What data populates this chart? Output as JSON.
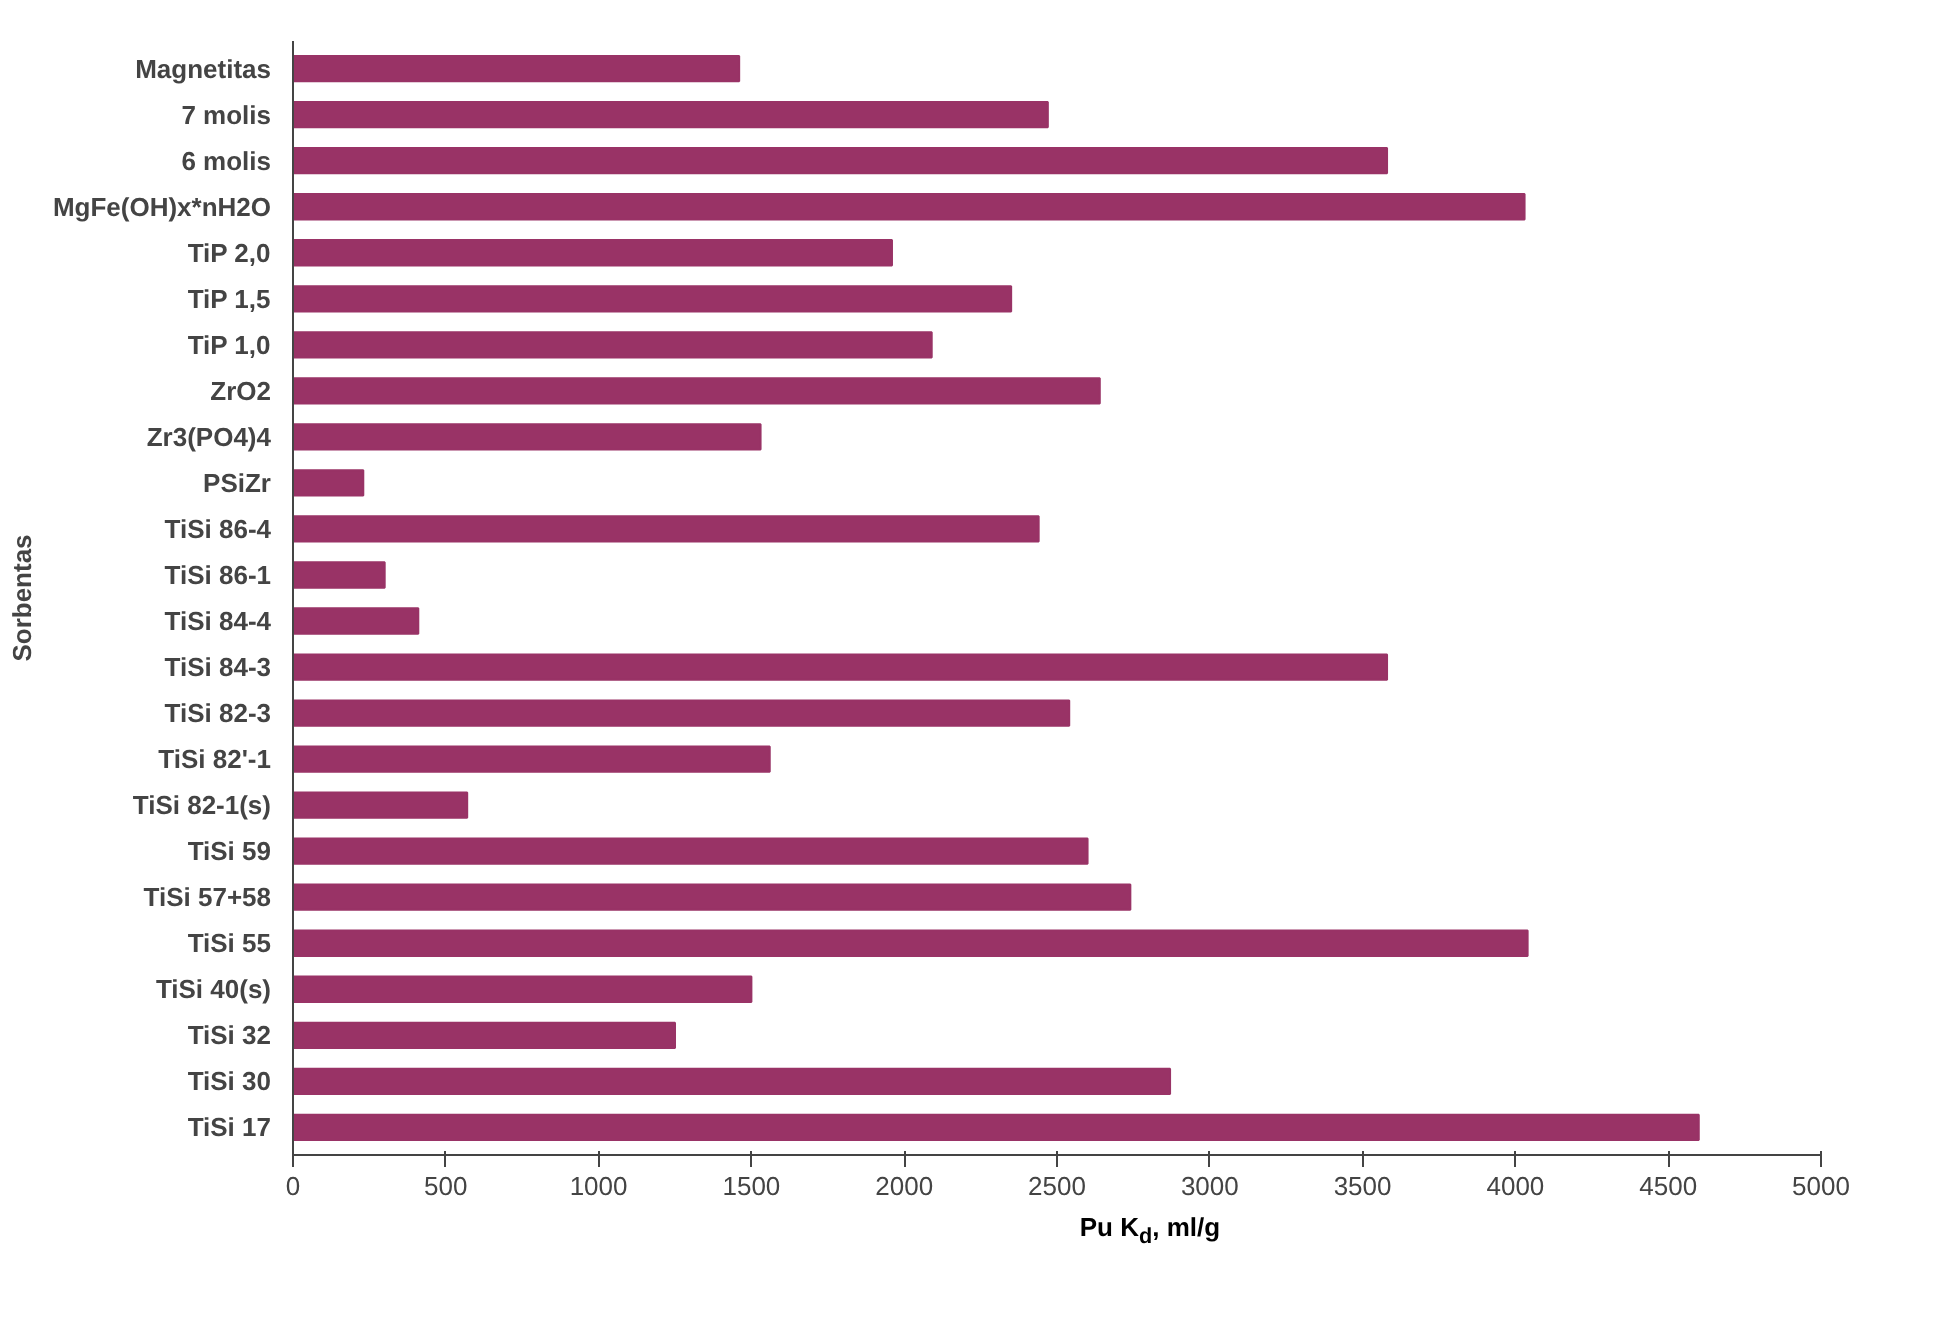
{
  "chart_data": {
    "type": "bar",
    "orientation": "horizontal",
    "ylabel": "Sorbentas",
    "xlabel": "Pu K$_{d}$, ml/g",
    "categories": [
      "Magnetitas",
      "7 molis",
      "6 molis",
      "MgFe(OH)x*nH2O",
      "TiP 2,0",
      "TiP 1,5",
      "TiP 1,0",
      "ZrO2",
      "Zr3(PO4)4",
      "PSiZr",
      "TiSi 86-4",
      "TiSi 86-1",
      "TiSi 84-4",
      "TiSi 84-3",
      "TiSi 82-3",
      "TiSi 82'-1",
      "TiSi 82-1(s)",
      "TiSi 59",
      "TiSi 57+58",
      "TiSi 55",
      "TiSi 40(s)",
      "TiSi 32",
      "TiSi 30",
      "TiSi 17"
    ],
    "values": [
      1460,
      2470,
      3580,
      4030,
      1960,
      2350,
      2090,
      2640,
      1530,
      230,
      2440,
      300,
      410,
      3580,
      2540,
      1560,
      570,
      2600,
      2740,
      4040,
      1500,
      1250,
      2870,
      4600
    ],
    "color": "#993366",
    "xlim": [
      0,
      5000
    ],
    "xticks": [
      0,
      500,
      1000,
      1500,
      2000,
      2500,
      3000,
      3500,
      4000,
      4500,
      5000
    ],
    "grid": false
  }
}
